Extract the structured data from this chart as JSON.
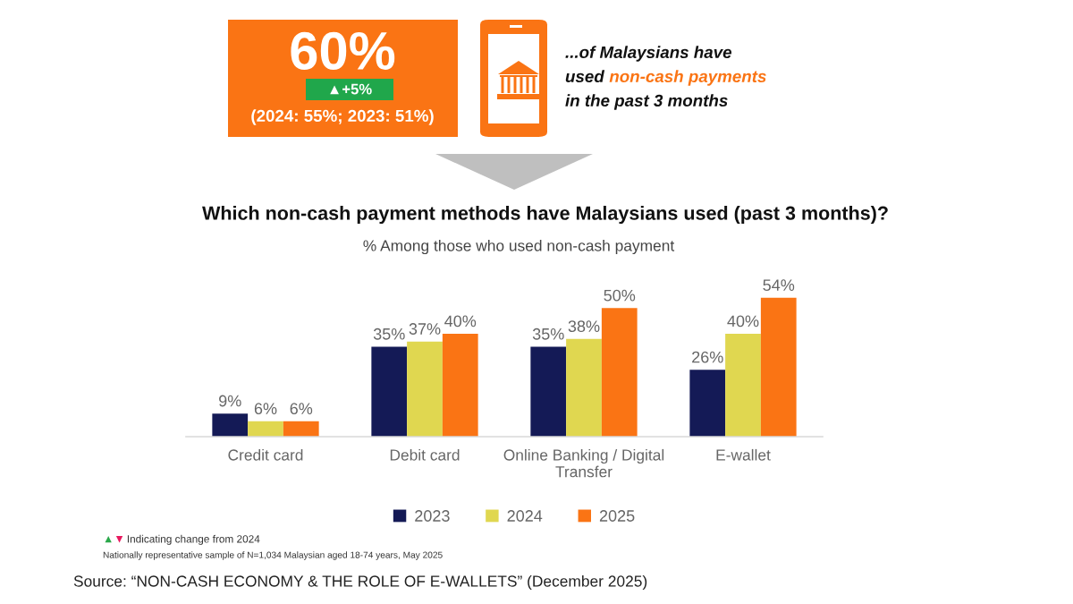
{
  "chart_data": {
    "type": "bar",
    "title": "Which non-cash payment methods have Malaysians used (past 3 months)?",
    "subtitle": "% Among those who used non-cash payment",
    "categories": [
      "Credit card",
      "Debit card",
      "Online Banking / Digital\nTransfer",
      "E-wallet"
    ],
    "series": [
      {
        "name": "2023",
        "color": "#141a56",
        "values": [
          9,
          35,
          35,
          26
        ],
        "value_labels": [
          "9%",
          "35%",
          "35%",
          "26%"
        ]
      },
      {
        "name": "2024",
        "color": "#e0d750",
        "values": [
          6,
          37,
          38,
          40
        ],
        "value_labels": [
          "6%",
          "37%",
          "38%",
          "40%"
        ]
      },
      {
        "name": "2025",
        "color": "#fa7414",
        "values": [
          6,
          40,
          50,
          54
        ],
        "value_labels": [
          "6%",
          "40%",
          "50%",
          "54%"
        ]
      }
    ],
    "tick_labels": "x",
    "legend": "bottom",
    "annotations": [
      "60%",
      "▲+5%",
      "(2024: 55%; 2023: 51%)",
      "...of Malaysians have",
      "used",
      "non-cash payments",
      "in the past 3 months",
      "▲",
      "▼",
      "Indicating change from 2024",
      "Nationally representative sample of N=1,034 Malaysian aged 18-74 years, May 2025",
      "Source: “NON-CASH ECONOMY & THE ROLE OF E-WALLETS” (December 2025)"
    ]
  }
}
